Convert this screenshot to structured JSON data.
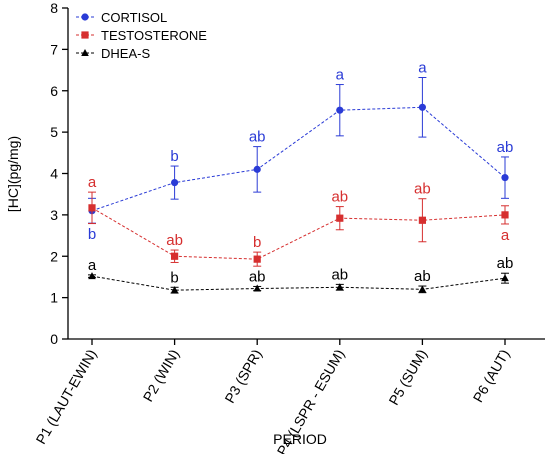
{
  "chart_data": {
    "type": "line",
    "xlabel": "PERIOD",
    "ylabel": "[HC](pg/mg)",
    "ylim": [
      0,
      8
    ],
    "yticks": [
      0,
      1,
      2,
      3,
      4,
      5,
      6,
      7,
      8
    ],
    "categories": [
      "P1 (LAUT-EWIN)",
      "P2 (WIN)",
      "P3 (SPR)",
      "P4 (LSPR - ESUM)",
      "P5 (SUM)",
      "P6 (AUT)"
    ],
    "legend_position": "top-left",
    "grid": false,
    "series": [
      {
        "name": "CORTISOL",
        "color": "#2a3bd6",
        "marker": "circle",
        "values": [
          3.1,
          3.78,
          4.1,
          5.53,
          5.6,
          3.9
        ],
        "errors": [
          0.3,
          0.4,
          0.55,
          0.62,
          0.72,
          0.5
        ],
        "labels": [
          "b",
          "b",
          "ab",
          "a",
          "a",
          "ab"
        ],
        "label_positions": [
          "below",
          "above",
          "above",
          "above",
          "above",
          "above"
        ]
      },
      {
        "name": "TESTOSTERONE",
        "color": "#d62f2f",
        "marker": "square",
        "values": [
          3.17,
          2.0,
          1.93,
          2.92,
          2.87,
          3.0
        ],
        "errors": [
          0.38,
          0.15,
          0.17,
          0.28,
          0.52,
          0.22
        ],
        "labels": [
          "a",
          "ab",
          "b",
          "ab",
          "ab",
          "a"
        ],
        "label_positions": [
          "above",
          "above",
          "above",
          "above",
          "above",
          "below"
        ]
      },
      {
        "name": "DHEA-S",
        "color": "#000000",
        "marker": "triangle",
        "values": [
          1.52,
          1.18,
          1.22,
          1.25,
          1.2,
          1.47
        ],
        "errors": [
          0.03,
          0.07,
          0.05,
          0.07,
          0.08,
          0.12
        ],
        "labels": [
          "a",
          "b",
          "ab",
          "ab",
          "ab",
          "ab"
        ],
        "label_positions": [
          "above",
          "above",
          "above",
          "above",
          "above",
          "above"
        ]
      }
    ]
  }
}
